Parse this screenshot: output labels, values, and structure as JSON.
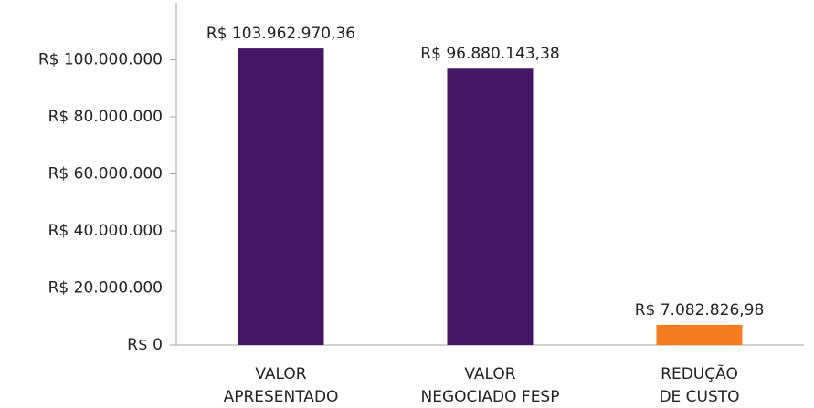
{
  "chart_data": {
    "type": "bar",
    "categories": [
      [
        "VALOR",
        "APRESENTADO"
      ],
      [
        "VALOR",
        "NEGOCIADO FESP"
      ],
      [
        "REDUÇÃO",
        "DE CUSTO"
      ]
    ],
    "values": [
      103962970.36,
      96880143.38,
      7082826.98
    ],
    "value_labels": [
      "R$ 103.962.970,36",
      "R$ 96.880.143,38",
      "R$ 7.082.826,98"
    ],
    "colors": [
      "#431763",
      "#431763",
      "#f47b20"
    ],
    "ylim": [
      0,
      120000000
    ],
    "yticks": [
      {
        "value": 0,
        "label": "R$ 0"
      },
      {
        "value": 20000000,
        "label": "R$ 20.000.000"
      },
      {
        "value": 40000000,
        "label": "R$ 40.000.000"
      },
      {
        "value": 60000000,
        "label": "R$ 60.000.000"
      },
      {
        "value": 80000000,
        "label": "R$ 80.000.000"
      },
      {
        "value": 100000000,
        "label": "R$ 100.000.000"
      }
    ]
  }
}
